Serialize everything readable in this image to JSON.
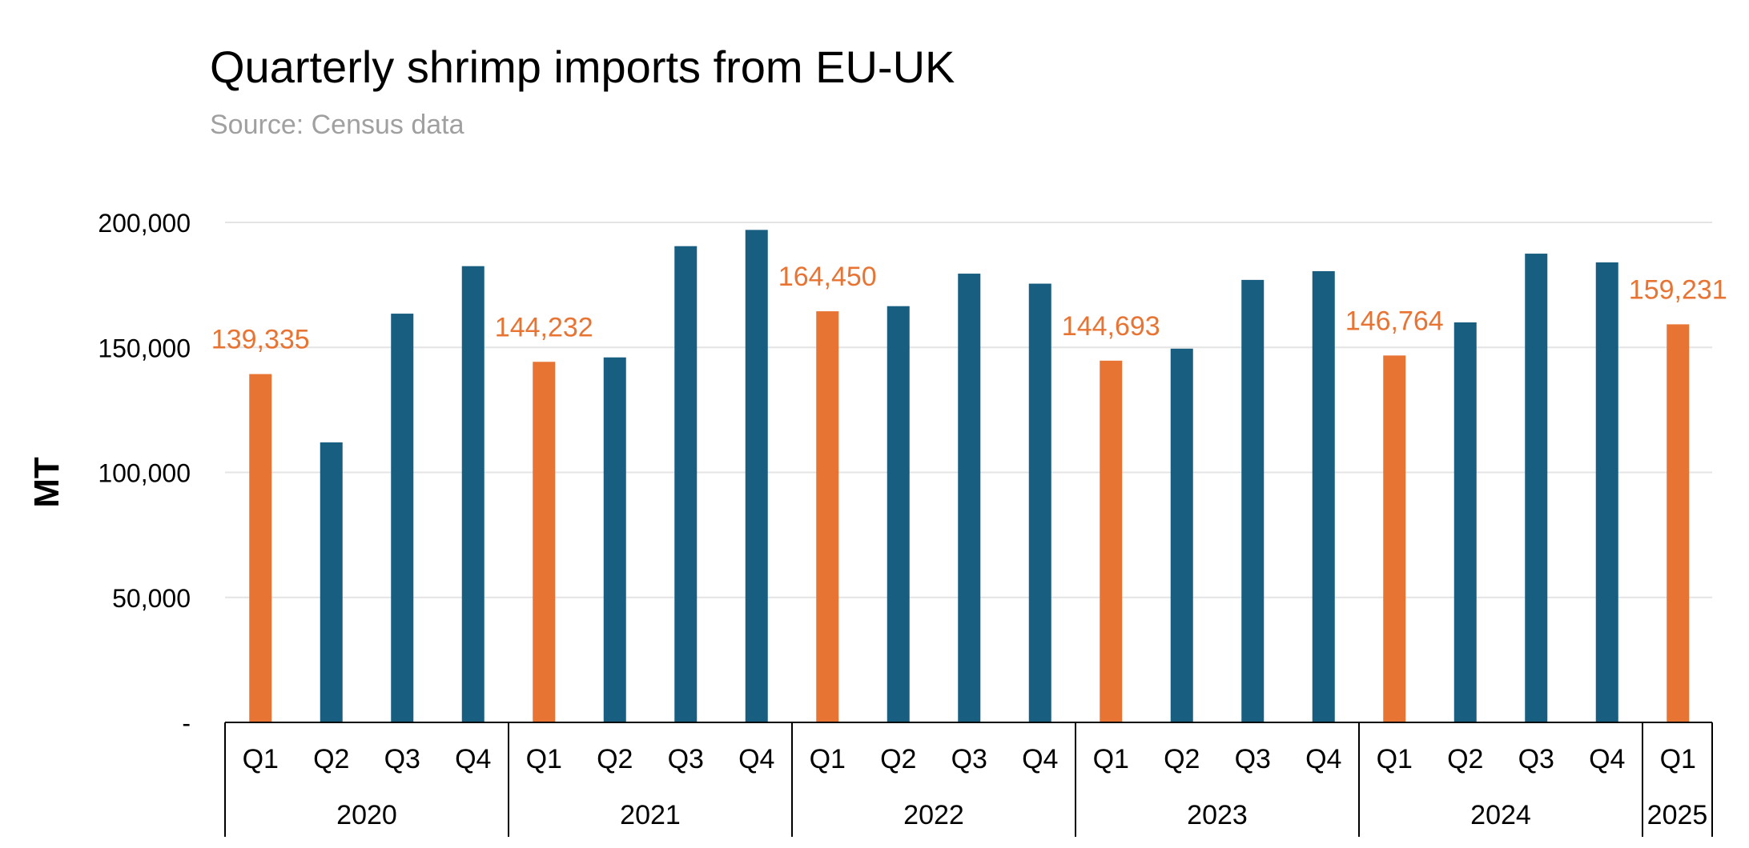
{
  "title": "Quarterly shrimp imports from EU-UK",
  "subtitle": "Source: Census data",
  "colors": {
    "q1": "#e87434",
    "other": "#175e80",
    "grid": "#e4e4e4",
    "axis": "#000000"
  },
  "chart_data": {
    "type": "bar",
    "title": "Quarterly shrimp imports from EU-UK",
    "subtitle": "Source: Census data",
    "xlabel": "",
    "ylabel": "MT",
    "ylim": [
      0,
      200000
    ],
    "yticks": [
      {
        "value": 0,
        "label": "-"
      },
      {
        "value": 50000,
        "label": "50,000"
      },
      {
        "value": 100000,
        "label": "100,000"
      },
      {
        "value": 150000,
        "label": "150,000"
      },
      {
        "value": 200000,
        "label": "200,000"
      }
    ],
    "grid": true,
    "groups": [
      {
        "label": "2020",
        "categories": [
          "Q1",
          "Q2",
          "Q3",
          "Q4"
        ],
        "values": [
          139335,
          112000,
          163500,
          182500
        ]
      },
      {
        "label": "2021",
        "categories": [
          "Q1",
          "Q2",
          "Q3",
          "Q4"
        ],
        "values": [
          144232,
          146000,
          190500,
          197000
        ]
      },
      {
        "label": "2022",
        "categories": [
          "Q1",
          "Q2",
          "Q3",
          "Q4"
        ],
        "values": [
          164450,
          166500,
          179500,
          175500
        ]
      },
      {
        "label": "2023",
        "categories": [
          "Q1",
          "Q2",
          "Q3",
          "Q4"
        ],
        "values": [
          144693,
          149500,
          177000,
          180500
        ]
      },
      {
        "label": "2024",
        "categories": [
          "Q1",
          "Q2",
          "Q3",
          "Q4"
        ],
        "values": [
          146764,
          160000,
          187500,
          184000
        ]
      },
      {
        "label": "2025",
        "categories": [
          "Q1"
        ],
        "values": [
          159231
        ]
      }
    ],
    "data_labels": {
      "2020-Q1": "139,335",
      "2021-Q1": "144,232",
      "2022-Q1": "164,450",
      "2023-Q1": "144,693",
      "2024-Q1": "146,764",
      "2025-Q1": "159,231"
    }
  }
}
